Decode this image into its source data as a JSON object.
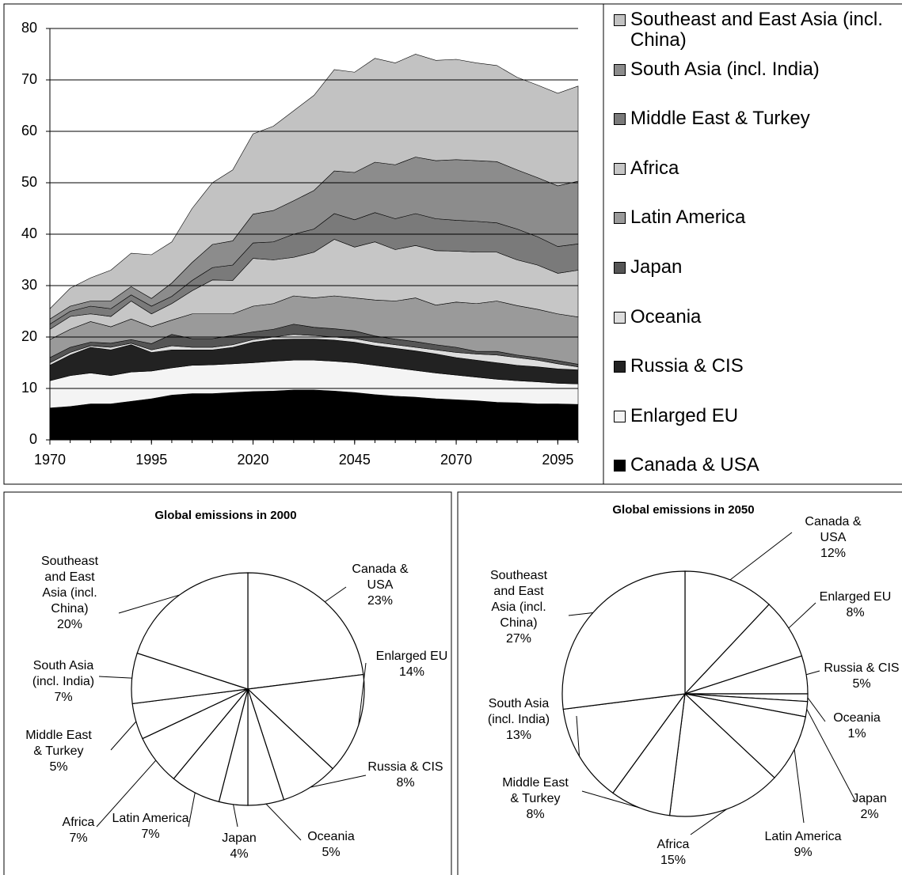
{
  "chart_data": [
    {
      "type": "area",
      "stacked": true,
      "grid": true,
      "x": [
        1970,
        1975,
        1980,
        1985,
        1990,
        1995,
        2000,
        2005,
        2010,
        2015,
        2020,
        2025,
        2030,
        2035,
        2040,
        2045,
        2050,
        2055,
        2060,
        2065,
        2070,
        2075,
        2080,
        2085,
        2090,
        2095,
        2100
      ],
      "xlim": [
        1970,
        2100
      ],
      "xticks": [
        1970,
        1995,
        2020,
        2045,
        2070,
        2095
      ],
      "ylim": [
        0,
        80
      ],
      "yticks": [
        0,
        10,
        20,
        30,
        40,
        50,
        60,
        70,
        80
      ],
      "series": [
        {
          "name": "Canada & USA",
          "color": "#000000",
          "values": [
            6.2,
            6.5,
            7,
            7,
            7.5,
            8,
            8.7,
            9,
            9,
            9.2,
            9.4,
            9.5,
            9.7,
            9.7,
            9.5,
            9.2,
            8.8,
            8.5,
            8.3,
            8,
            7.8,
            7.6,
            7.3,
            7.2,
            7,
            7,
            6.9
          ]
        },
        {
          "name": "Enlarged EU",
          "color": "#f4f4f4",
          "values": [
            5.3,
            6,
            6,
            5.5,
            5.7,
            5.4,
            5.3,
            5.5,
            5.6,
            5.6,
            5.6,
            5.8,
            5.8,
            5.8,
            5.8,
            5.8,
            5.7,
            5.5,
            5.2,
            5,
            4.8,
            4.6,
            4.5,
            4.3,
            4.3,
            4,
            4
          ]
        },
        {
          "name": "Russia & CIS",
          "color": "#222222",
          "values": [
            3,
            4,
            5,
            5,
            5.3,
            3.6,
            3.5,
            3,
            2.9,
            3.2,
            4,
            4.2,
            4.1,
            4.1,
            4.1,
            4,
            3.8,
            3.8,
            3.8,
            3.7,
            3.4,
            3.3,
            3.2,
            3,
            2.9,
            2.8,
            2.7
          ]
        },
        {
          "name": "Oceania",
          "color": "#dddddd",
          "values": [
            0.5,
            0.5,
            0.3,
            0.5,
            0.3,
            0.5,
            0.8,
            0.5,
            0.5,
            0.5,
            0.5,
            0.5,
            0.9,
            0.7,
            0.6,
            0.7,
            0.7,
            0.7,
            0.7,
            0.8,
            1,
            1.2,
            1.5,
            1.5,
            1.3,
            1,
            0.6
          ]
        },
        {
          "name": "Japan",
          "color": "#555555",
          "values": [
            1,
            1,
            0.7,
            0.8,
            0.7,
            1.2,
            2.2,
            1.7,
            1.7,
            1.8,
            1.5,
            1.5,
            2,
            1.6,
            1.6,
            1.5,
            1.2,
            1.1,
            1.1,
            1,
            1,
            0.5,
            0.7,
            0.5,
            0.5,
            0.6,
            0.5
          ]
        },
        {
          "name": "Latin America",
          "color": "#9a9a9a",
          "values": [
            3.5,
            3.5,
            4,
            3.2,
            4,
            3.3,
            2.8,
            4.8,
            4.8,
            4.2,
            5,
            5,
            5.5,
            5.7,
            6.4,
            6.4,
            7,
            7.4,
            8.5,
            7.7,
            8.8,
            9.3,
            9.8,
            9.6,
            9.4,
            9.1,
            9.2
          ]
        },
        {
          "name": "Africa",
          "color": "#c6c6c6",
          "values": [
            2,
            2.5,
            1.5,
            2,
            3.5,
            2.5,
            3.2,
            4.5,
            6.6,
            6.5,
            9.3,
            8.5,
            7.5,
            8.9,
            11,
            9.9,
            11.3,
            10,
            10.2,
            10.6,
            9.9,
            10,
            9.5,
            8.9,
            8.6,
            7.9,
            9.1
          ]
        },
        {
          "name": "Middle East & Turkey",
          "color": "#7a7a7a",
          "values": [
            1,
            1,
            1.5,
            1.5,
            1.2,
            1.5,
            1.4,
            2,
            2.4,
            3,
            3,
            3.5,
            4.5,
            4.5,
            5,
            5.3,
            5.7,
            6,
            6.2,
            6.2,
            6,
            6,
            5.7,
            6,
            5.5,
            5.2,
            5.1
          ]
        },
        {
          "name": "South Asia (incl. India)",
          "color": "#8c8c8c",
          "values": [
            1,
            1,
            1,
            1.5,
            1.6,
            1.5,
            2.6,
            3.5,
            4.5,
            4.7,
            5.6,
            6.1,
            6.5,
            7.5,
            8.3,
            9.2,
            9.8,
            10.5,
            11,
            11.3,
            11.8,
            11.8,
            11.9,
            11.5,
            11.5,
            11.8,
            12.2
          ]
        },
        {
          "name": "Southeast and East Asia (incl. China)",
          "color": "#c2c2c2",
          "values": [
            2,
            3.5,
            4.5,
            6,
            6.5,
            8.5,
            8,
            10.5,
            12,
            13.8,
            15.6,
            16.4,
            17.5,
            18.5,
            19.7,
            19.5,
            20.2,
            19.8,
            20,
            19.5,
            19.5,
            19,
            18.7,
            18,
            18,
            18,
            18.5
          ]
        }
      ]
    },
    {
      "type": "pie",
      "title": "Global emissions in 2000",
      "categories": [
        "Canada & USA",
        "Enlarged EU",
        "Russia & CIS",
        "Oceania",
        "Japan",
        "Latin America",
        "Africa",
        "Middle East & Turkey",
        "South Asia (incl. India)",
        "Southeast and East Asia (incl. China)"
      ],
      "values": [
        23,
        14,
        8,
        5,
        4,
        7,
        7,
        5,
        7,
        20
      ],
      "value_labels": [
        "23%",
        "14%",
        "8%",
        "5%",
        "4%",
        "7%",
        "7%",
        "5%",
        "7%",
        "20%"
      ]
    },
    {
      "type": "pie",
      "title": "Global emissions in 2050",
      "categories": [
        "Canada & USA",
        "Enlarged EU",
        "Russia & CIS",
        "Oceania",
        "Japan",
        "Latin America",
        "Africa",
        "Middle East & Turkey",
        "South Asia (incl. India)",
        "Southeast and East Asia (incl. China)"
      ],
      "values": [
        12,
        8,
        5,
        1,
        2,
        9,
        15,
        8,
        13,
        27
      ],
      "value_labels": [
        "12%",
        "8%",
        "5%",
        "1%",
        "2%",
        "9%",
        "15%",
        "8%",
        "13%",
        "27%"
      ]
    }
  ]
}
